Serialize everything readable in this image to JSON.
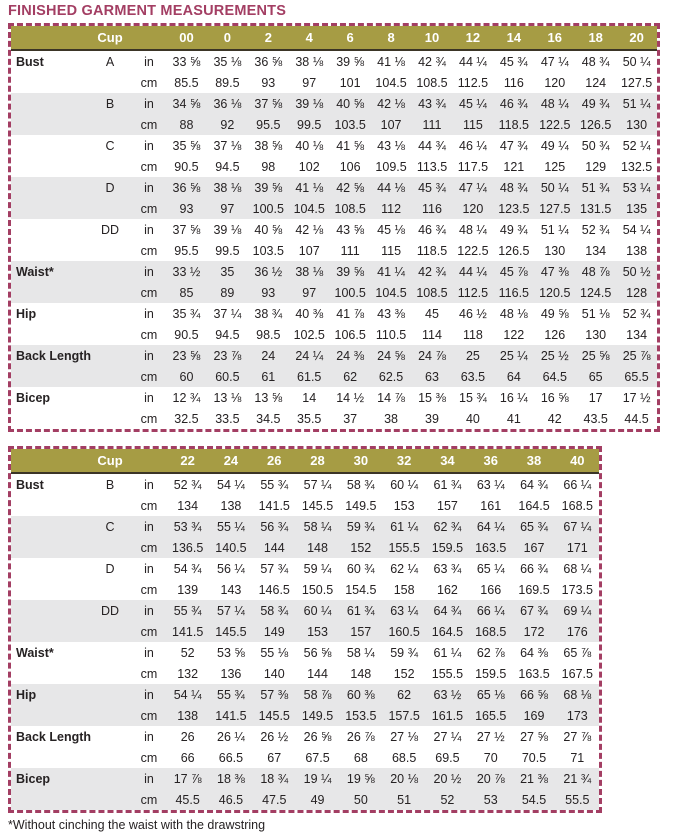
{
  "page": {
    "title": "FINISHED GARMENT MEASUREMENTS",
    "footnote": "*Without cinching the waist with the drawstring"
  },
  "colors": {
    "accent_maroon": "#a33e63",
    "header_olive": "#a69c44",
    "row_shade": "#e7e7e8",
    "text": "#262223"
  },
  "tables": [
    {
      "header": {
        "cup_label": "Cup",
        "sizes": [
          "00",
          "0",
          "2",
          "4",
          "6",
          "8",
          "10",
          "12",
          "14",
          "16",
          "18",
          "20"
        ]
      },
      "rows": [
        {
          "label": "Bust",
          "cup": "A",
          "shaded": false,
          "units": [
            {
              "unit": "in",
              "values": [
                "33 ⅝",
                "35 ⅛",
                "36 ⅝",
                "38 ⅛",
                "39 ⅝",
                "41 ⅛",
                "42 ¾",
                "44 ¼",
                "45 ¾",
                "47 ¼",
                "48 ¾",
                "50 ¼"
              ]
            },
            {
              "unit": "cm",
              "values": [
                "85.5",
                "89.5",
                "93",
                "97",
                "101",
                "104.5",
                "108.5",
                "112.5",
                "116",
                "120",
                "124",
                "127.5"
              ]
            }
          ]
        },
        {
          "label": "",
          "cup": "B",
          "shaded": true,
          "units": [
            {
              "unit": "in",
              "values": [
                "34 ⅝",
                "36 ⅛",
                "37 ⅝",
                "39 ⅛",
                "40 ⅝",
                "42 ⅛",
                "43 ¾",
                "45 ¼",
                "46 ¾",
                "48 ¼",
                "49 ¾",
                "51 ¼"
              ]
            },
            {
              "unit": "cm",
              "values": [
                "88",
                "92",
                "95.5",
                "99.5",
                "103.5",
                "107",
                "111",
                "115",
                "118.5",
                "122.5",
                "126.5",
                "130"
              ]
            }
          ]
        },
        {
          "label": "",
          "cup": "C",
          "shaded": false,
          "units": [
            {
              "unit": "in",
              "values": [
                "35 ⅝",
                "37 ⅛",
                "38 ⅝",
                "40 ⅛",
                "41 ⅝",
                "43 ⅛",
                "44 ¾",
                "46 ¼",
                "47 ¾",
                "49 ¼",
                "50 ¾",
                "52 ¼"
              ]
            },
            {
              "unit": "cm",
              "values": [
                "90.5",
                "94.5",
                "98",
                "102",
                "106",
                "109.5",
                "113.5",
                "117.5",
                "121",
                "125",
                "129",
                "132.5"
              ]
            }
          ]
        },
        {
          "label": "",
          "cup": "D",
          "shaded": true,
          "units": [
            {
              "unit": "in",
              "values": [
                "36 ⅝",
                "38 ⅛",
                "39 ⅝",
                "41 ⅛",
                "42 ⅝",
                "44 ⅛",
                "45 ¾",
                "47 ¼",
                "48 ¾",
                "50 ¼",
                "51 ¾",
                "53 ¼"
              ]
            },
            {
              "unit": "cm",
              "values": [
                "93",
                "97",
                "100.5",
                "104.5",
                "108.5",
                "112",
                "116",
                "120",
                "123.5",
                "127.5",
                "131.5",
                "135"
              ]
            }
          ]
        },
        {
          "label": "",
          "cup": "DD",
          "shaded": false,
          "units": [
            {
              "unit": "in",
              "values": [
                "37 ⅝",
                "39 ⅛",
                "40 ⅝",
                "42 ⅛",
                "43 ⅝",
                "45 ⅛",
                "46 ¾",
                "48 ¼",
                "49 ¾",
                "51 ¼",
                "52 ¾",
                "54 ¼"
              ]
            },
            {
              "unit": "cm",
              "values": [
                "95.5",
                "99.5",
                "103.5",
                "107",
                "111",
                "115",
                "118.5",
                "122.5",
                "126.5",
                "130",
                "134",
                "138"
              ]
            }
          ]
        },
        {
          "label": "Waist*",
          "cup": "",
          "shaded": true,
          "units": [
            {
              "unit": "in",
              "values": [
                "33 ½",
                "35",
                "36 ½",
                "38 ⅛",
                "39 ⅝",
                "41 ¼",
                "42 ¾",
                "44 ¼",
                "45 ⅞",
                "47 ⅜",
                "48 ⅞",
                "50 ½"
              ]
            },
            {
              "unit": "cm",
              "values": [
                "85",
                "89",
                "93",
                "97",
                "100.5",
                "104.5",
                "108.5",
                "112.5",
                "116.5",
                "120.5",
                "124.5",
                "128"
              ]
            }
          ]
        },
        {
          "label": "Hip",
          "cup": "",
          "shaded": false,
          "units": [
            {
              "unit": "in",
              "values": [
                "35 ¾",
                "37 ¼",
                "38 ¾",
                "40 ⅜",
                "41 ⅞",
                "43 ⅜",
                "45",
                "46 ½",
                "48 ⅛",
                "49 ⅝",
                "51 ⅛",
                "52 ¾"
              ]
            },
            {
              "unit": "cm",
              "values": [
                "90.5",
                "94.5",
                "98.5",
                "102.5",
                "106.5",
                "110.5",
                "114",
                "118",
                "122",
                "126",
                "130",
                "134"
              ]
            }
          ]
        },
        {
          "label": "Back Length",
          "cup": "",
          "shaded": true,
          "units": [
            {
              "unit": "in",
              "values": [
                "23 ⅝",
                "23 ⅞",
                "24",
                "24 ¼",
                "24 ⅜",
                "24 ⅝",
                "24 ⅞",
                "25",
                "25 ¼",
                "25 ½",
                "25 ⅝",
                "25 ⅞"
              ]
            },
            {
              "unit": "cm",
              "values": [
                "60",
                "60.5",
                "61",
                "61.5",
                "62",
                "62.5",
                "63",
                "63.5",
                "64",
                "64.5",
                "65",
                "65.5"
              ]
            }
          ]
        },
        {
          "label": "Bicep",
          "cup": "",
          "shaded": false,
          "units": [
            {
              "unit": "in",
              "values": [
                "12 ¾",
                "13 ⅛",
                "13 ⅝",
                "14",
                "14 ½",
                "14 ⅞",
                "15 ⅜",
                "15 ¾",
                "16 ¼",
                "16 ⅝",
                "17",
                "17 ½"
              ]
            },
            {
              "unit": "cm",
              "values": [
                "32.5",
                "33.5",
                "34.5",
                "35.5",
                "37",
                "38",
                "39",
                "40",
                "41",
                "42",
                "43.5",
                "44.5"
              ]
            }
          ]
        }
      ]
    },
    {
      "header": {
        "cup_label": "Cup",
        "sizes": [
          "22",
          "24",
          "26",
          "28",
          "30",
          "32",
          "34",
          "36",
          "38",
          "40"
        ]
      },
      "rows": [
        {
          "label": "Bust",
          "cup": "B",
          "shaded": false,
          "units": [
            {
              "unit": "in",
              "values": [
                "52 ¾",
                "54 ¼",
                "55 ¾",
                "57 ¼",
                "58 ¾",
                "60 ¼",
                "61 ¾",
                "63 ¼",
                "64 ¾",
                "66 ¼"
              ]
            },
            {
              "unit": "cm",
              "values": [
                "134",
                "138",
                "141.5",
                "145.5",
                "149.5",
                "153",
                "157",
                "161",
                "164.5",
                "168.5"
              ]
            }
          ]
        },
        {
          "label": "",
          "cup": "C",
          "shaded": true,
          "units": [
            {
              "unit": "in",
              "values": [
                "53 ¾",
                "55 ¼",
                "56 ¾",
                "58 ¼",
                "59 ¾",
                "61 ¼",
                "62 ¾",
                "64 ¼",
                "65 ¾",
                "67 ¼"
              ]
            },
            {
              "unit": "cm",
              "values": [
                "136.5",
                "140.5",
                "144",
                "148",
                "152",
                "155.5",
                "159.5",
                "163.5",
                "167",
                "171"
              ]
            }
          ]
        },
        {
          "label": "",
          "cup": "D",
          "shaded": false,
          "units": [
            {
              "unit": "in",
              "values": [
                "54 ¾",
                "56 ¼",
                "57 ¾",
                "59 ¼",
                "60 ¾",
                "62 ¼",
                "63 ¾",
                "65 ¼",
                "66 ¾",
                "68 ¼"
              ]
            },
            {
              "unit": "cm",
              "values": [
                "139",
                "143",
                "146.5",
                "150.5",
                "154.5",
                "158",
                "162",
                "166",
                "169.5",
                "173.5"
              ]
            }
          ]
        },
        {
          "label": "",
          "cup": "DD",
          "shaded": true,
          "units": [
            {
              "unit": "in",
              "values": [
                "55 ¾",
                "57 ¼",
                "58 ¾",
                "60 ¼",
                "61 ¾",
                "63 ¼",
                "64 ¾",
                "66 ¼",
                "67 ¾",
                "69 ¼"
              ]
            },
            {
              "unit": "cm",
              "values": [
                "141.5",
                "145.5",
                "149",
                "153",
                "157",
                "160.5",
                "164.5",
                "168.5",
                "172",
                "176"
              ]
            }
          ]
        },
        {
          "label": "Waist*",
          "cup": "",
          "shaded": false,
          "units": [
            {
              "unit": "in",
              "values": [
                "52",
                "53 ⅝",
                "55 ⅛",
                "56 ⅝",
                "58 ¼",
                "59 ¾",
                "61 ¼",
                "62 ⅞",
                "64 ⅜",
                "65 ⅞"
              ]
            },
            {
              "unit": "cm",
              "values": [
                "132",
                "136",
                "140",
                "144",
                "148",
                "152",
                "155.5",
                "159.5",
                "163.5",
                "167.5"
              ]
            }
          ]
        },
        {
          "label": "Hip",
          "cup": "",
          "shaded": true,
          "units": [
            {
              "unit": "in",
              "values": [
                "54 ¼",
                "55 ¾",
                "57 ⅜",
                "58 ⅞",
                "60 ⅜",
                "62",
                "63 ½",
                "65 ⅛",
                "66 ⅝",
                "68 ⅛"
              ]
            },
            {
              "unit": "cm",
              "values": [
                "138",
                "141.5",
                "145.5",
                "149.5",
                "153.5",
                "157.5",
                "161.5",
                "165.5",
                "169",
                "173"
              ]
            }
          ]
        },
        {
          "label": "Back Length",
          "cup": "",
          "shaded": false,
          "units": [
            {
              "unit": "in",
              "values": [
                "26",
                "26 ¼",
                "26 ½",
                "26 ⅝",
                "26 ⅞",
                "27 ⅛",
                "27 ¼",
                "27 ½",
                "27 ⅝",
                "27 ⅞"
              ]
            },
            {
              "unit": "cm",
              "values": [
                "66",
                "66.5",
                "67",
                "67.5",
                "68",
                "68.5",
                "69.5",
                "70",
                "70.5",
                "71"
              ]
            }
          ]
        },
        {
          "label": "Bicep",
          "cup": "",
          "shaded": true,
          "units": [
            {
              "unit": "in",
              "values": [
                "17 ⅞",
                "18 ⅜",
                "18 ¾",
                "19 ¼",
                "19 ⅝",
                "20 ⅛",
                "20 ½",
                "20 ⅞",
                "21 ⅜",
                "21 ¾"
              ]
            },
            {
              "unit": "cm",
              "values": [
                "45.5",
                "46.5",
                "47.5",
                "49",
                "50",
                "51",
                "52",
                "53",
                "54.5",
                "55.5"
              ]
            }
          ]
        }
      ]
    }
  ]
}
